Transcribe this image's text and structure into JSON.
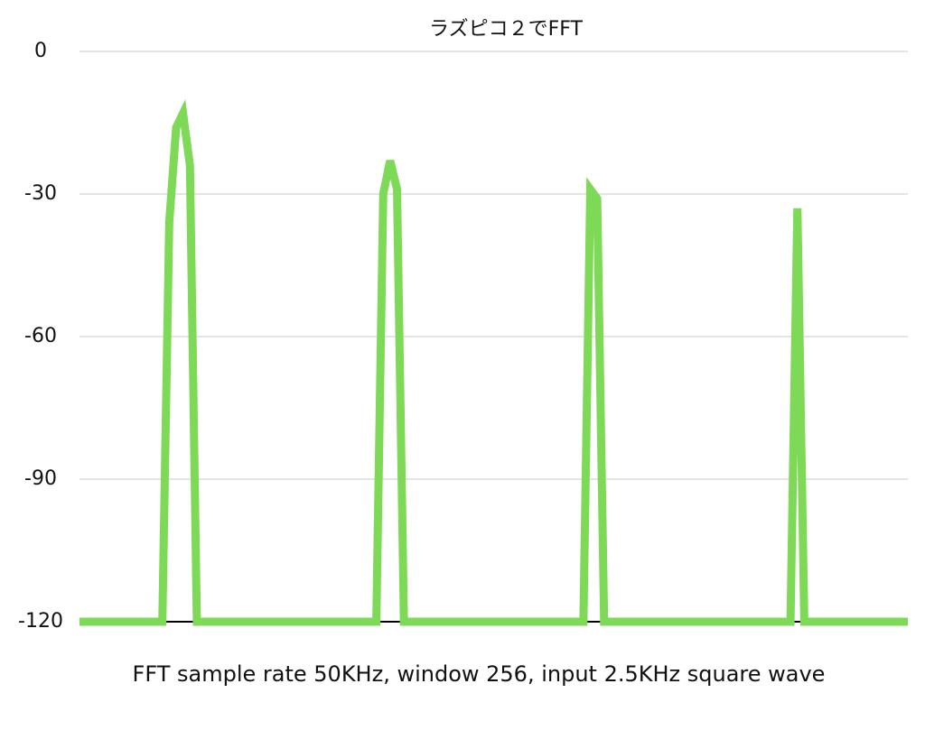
{
  "chart_data": {
    "type": "line",
    "title": "ラズピコ２でFFT",
    "x_label": "FFT sample rate 50KHz, window 256, input 2.5KHz square wave",
    "values": [
      -120,
      -120,
      -120,
      -120,
      -120,
      -120,
      -120,
      -120,
      -120,
      -120,
      -120,
      -120,
      -120,
      -36,
      -16,
      -13,
      -24,
      -120,
      -120,
      -120,
      -120,
      -120,
      -120,
      -120,
      -120,
      -120,
      -120,
      -120,
      -120,
      -120,
      -120,
      -120,
      -120,
      -120,
      -120,
      -120,
      -120,
      -120,
      -120,
      -120,
      -120,
      -120,
      -120,
      -120,
      -30,
      -23,
      -29,
      -120,
      -120,
      -120,
      -120,
      -120,
      -120,
      -120,
      -120,
      -120,
      -120,
      -120,
      -120,
      -120,
      -120,
      -120,
      -120,
      -120,
      -120,
      -120,
      -120,
      -120,
      -120,
      -120,
      -120,
      -120,
      -120,
      -120,
      -29,
      -31,
      -120,
      -120,
      -120,
      -120,
      -120,
      -120,
      -120,
      -120,
      -120,
      -120,
      -120,
      -120,
      -120,
      -120,
      -120,
      -120,
      -120,
      -120,
      -120,
      -120,
      -120,
      -120,
      -120,
      -120,
      -120,
      -120,
      -120,
      -120,
      -33,
      -120,
      -120,
      -120,
      -120,
      -120,
      -120,
      -120,
      -120,
      -120,
      -120,
      -120,
      -120,
      -120,
      -120,
      -120,
      -120
    ],
    "color": "#7ed957",
    "ylim": [
      -120,
      0
    ],
    "yticks": [
      0,
      -30,
      -60,
      -90,
      -120
    ],
    "grid": true
  }
}
